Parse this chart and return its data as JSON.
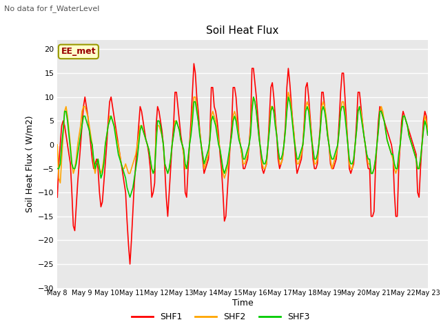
{
  "title": "Soil Heat Flux",
  "top_left_text": "No data for f_WaterLevel",
  "ylabel": "Soil Heat Flux ( W/m2)",
  "xlabel": "Time",
  "annotation": "EE_met",
  "ylim": [
    -30,
    22
  ],
  "yticks": [
    -30,
    -25,
    -20,
    -15,
    -10,
    -5,
    0,
    5,
    10,
    15,
    20
  ],
  "background_color": "#e8e8e8",
  "legend_labels": [
    "SHF1",
    "SHF2",
    "SHF3"
  ],
  "legend_colors": [
    "#ff0000",
    "#ffa500",
    "#00cc00"
  ],
  "shf1_color": "#ff0000",
  "shf2_color": "#ffa500",
  "shf3_color": "#00cc00",
  "x_tick_labels": [
    "May 8",
    "May 9",
    "May 10",
    "May 11",
    "May 12",
    "May 13",
    "May 14",
    "May 15",
    "May 16",
    "May 17",
    "May 18",
    "May 19",
    "May 20",
    "May 21",
    "May 22",
    "May 23"
  ],
  "num_days": 16,
  "shf1": [
    -11,
    -4,
    0,
    4,
    5,
    4,
    2,
    0,
    -2,
    -4,
    -10,
    -17,
    -18,
    -13,
    -8,
    -4,
    0,
    4,
    8,
    10,
    8,
    6,
    3,
    0,
    -3,
    -5,
    -4,
    -3,
    -5,
    -10,
    -13,
    -12,
    -8,
    -4,
    0,
    5,
    9,
    10,
    8,
    6,
    4,
    2,
    0,
    -2,
    -4,
    -6,
    -8,
    -10,
    -16,
    -21,
    -25,
    -20,
    -14,
    -8,
    -4,
    0,
    4,
    8,
    7,
    5,
    3,
    1,
    0,
    -2,
    -5,
    -11,
    -10,
    -8,
    4,
    8,
    7,
    5,
    3,
    0,
    -5,
    -11,
    -15,
    -10,
    -5,
    0,
    4,
    11,
    11,
    8,
    5,
    2,
    0,
    -2,
    -10,
    -11,
    -5,
    0,
    5,
    11,
    17,
    15,
    10,
    7,
    3,
    0,
    -3,
    -6,
    -5,
    -4,
    -3,
    2,
    12,
    12,
    8,
    7,
    5,
    2,
    -2,
    -5,
    -10,
    -16,
    -15,
    -10,
    -5,
    0,
    4,
    12,
    12,
    10,
    6,
    2,
    0,
    -2,
    -5,
    -5,
    -4,
    -3,
    0,
    4,
    16,
    16,
    13,
    10,
    6,
    2,
    -2,
    -5,
    -6,
    -5,
    -4,
    0,
    6,
    12,
    13,
    10,
    6,
    2,
    -3,
    -5,
    -4,
    -3,
    0,
    4,
    12,
    16,
    13,
    9,
    5,
    2,
    -3,
    -6,
    -5,
    -4,
    -3,
    0,
    5,
    12,
    13,
    10,
    6,
    2,
    -3,
    -5,
    -5,
    -4,
    0,
    4,
    11,
    11,
    8,
    5,
    2,
    0,
    -4,
    -5,
    -5,
    -4,
    -3,
    0,
    5,
    11,
    15,
    15,
    10,
    5,
    0,
    -5,
    -6,
    -5,
    -4,
    0,
    5,
    11,
    11,
    8,
    5,
    2,
    0,
    -3,
    -5,
    -5,
    -15,
    -15,
    -14,
    -5,
    0,
    5,
    8,
    7,
    6,
    5,
    4,
    3,
    2,
    1,
    0,
    -2,
    -10,
    -15,
    -15,
    -5,
    0,
    5,
    7,
    6,
    5,
    4,
    3,
    2,
    1,
    0,
    -1,
    -2,
    -10,
    -11,
    -5,
    0,
    5,
    7,
    6,
    2
  ],
  "shf2": [
    0,
    -7,
    -8,
    -3,
    2,
    7,
    8,
    6,
    3,
    0,
    -4,
    -6,
    -5,
    -3,
    0,
    2,
    4,
    7,
    8,
    8,
    7,
    6,
    4,
    2,
    0,
    -4,
    -6,
    -4,
    -3,
    -5,
    -6,
    -5,
    -3,
    0,
    2,
    4,
    6,
    6,
    5,
    4,
    3,
    1,
    0,
    -2,
    -4,
    -5,
    -5,
    -4,
    -5,
    -6,
    -6,
    -5,
    -4,
    -3,
    -2,
    0,
    2,
    4,
    4,
    3,
    2,
    1,
    0,
    -1,
    -3,
    -5,
    -6,
    -5,
    2,
    4,
    4,
    3,
    2,
    0,
    -4,
    -5,
    -6,
    -5,
    -3,
    0,
    2,
    5,
    5,
    4,
    3,
    1,
    0,
    -2,
    -5,
    -5,
    -3,
    0,
    3,
    7,
    10,
    10,
    8,
    5,
    3,
    0,
    -2,
    -5,
    -4,
    -3,
    -2,
    1,
    6,
    7,
    6,
    5,
    3,
    1,
    -1,
    -3,
    -6,
    -7,
    -6,
    -5,
    -3,
    0,
    2,
    6,
    7,
    6,
    4,
    2,
    0,
    -2,
    -4,
    -4,
    -3,
    -2,
    0,
    3,
    8,
    10,
    9,
    7,
    4,
    1,
    -1,
    -4,
    -5,
    -5,
    -4,
    0,
    4,
    8,
    8,
    7,
    5,
    2,
    -1,
    -4,
    -4,
    -3,
    0,
    3,
    8,
    11,
    10,
    8,
    5,
    2,
    -1,
    -4,
    -4,
    -3,
    -2,
    0,
    4,
    8,
    9,
    8,
    5,
    2,
    -1,
    -4,
    -4,
    -3,
    0,
    3,
    8,
    9,
    8,
    6,
    3,
    0,
    -3,
    -5,
    -4,
    -3,
    -2,
    0,
    3,
    7,
    9,
    9,
    7,
    4,
    0,
    -4,
    -5,
    -5,
    -3,
    0,
    3,
    7,
    8,
    7,
    5,
    2,
    0,
    -2,
    -4,
    -4,
    -6,
    -6,
    -5,
    -3,
    0,
    3,
    7,
    8,
    7,
    5,
    3,
    1,
    0,
    -1,
    -2,
    -3,
    -5,
    -6,
    -5,
    -3,
    0,
    3,
    6,
    6,
    5,
    4,
    2,
    1,
    0,
    -1,
    -2,
    -3,
    -5,
    -5,
    -3,
    0,
    3,
    6,
    5,
    3
  ],
  "shf3": [
    -5,
    -5,
    -4,
    0,
    3,
    7,
    7,
    5,
    2,
    -1,
    -4,
    -5,
    -5,
    -4,
    -2,
    0,
    2,
    4,
    6,
    6,
    5,
    4,
    3,
    1,
    0,
    -3,
    -5,
    -4,
    -3,
    -5,
    -7,
    -6,
    -4,
    0,
    2,
    4,
    5,
    6,
    5,
    4,
    2,
    0,
    -2,
    -3,
    -4,
    -5,
    -6,
    -7,
    -9,
    -10,
    -11,
    -10,
    -9,
    -7,
    -5,
    -3,
    0,
    3,
    4,
    3,
    2,
    1,
    0,
    -1,
    -3,
    -5,
    -6,
    -5,
    0,
    5,
    5,
    4,
    2,
    0,
    -4,
    -5,
    -6,
    -5,
    -3,
    0,
    2,
    4,
    5,
    4,
    3,
    1,
    0,
    -1,
    -4,
    -5,
    -3,
    0,
    2,
    5,
    9,
    9,
    7,
    5,
    2,
    0,
    -2,
    -4,
    -3,
    -2,
    -1,
    1,
    5,
    6,
    5,
    4,
    2,
    0,
    -1,
    -3,
    -5,
    -6,
    -5,
    -4,
    -2,
    0,
    2,
    5,
    6,
    5,
    3,
    1,
    0,
    -1,
    -3,
    -3,
    -2,
    -1,
    0,
    2,
    7,
    10,
    9,
    7,
    4,
    1,
    -1,
    -3,
    -4,
    -4,
    -3,
    0,
    3,
    7,
    8,
    7,
    4,
    2,
    -1,
    -3,
    -3,
    -2,
    0,
    3,
    7,
    10,
    9,
    7,
    4,
    1,
    -1,
    -3,
    -3,
    -2,
    -1,
    0,
    3,
    7,
    8,
    7,
    4,
    1,
    -1,
    -3,
    -3,
    -2,
    0,
    3,
    7,
    8,
    7,
    5,
    2,
    0,
    -2,
    -3,
    -3,
    -2,
    -1,
    0,
    3,
    7,
    8,
    8,
    6,
    3,
    0,
    -3,
    -4,
    -4,
    -3,
    0,
    3,
    7,
    8,
    6,
    4,
    2,
    0,
    -2,
    -3,
    -3,
    -6,
    -6,
    -5,
    -3,
    0,
    3,
    7,
    7,
    6,
    5,
    3,
    1,
    0,
    -1,
    -2,
    -2,
    -4,
    -5,
    -5,
    -2,
    0,
    3,
    6,
    6,
    5,
    4,
    2,
    1,
    0,
    -1,
    -2,
    -3,
    -5,
    -5,
    -3,
    0,
    3,
    5,
    4,
    2
  ]
}
